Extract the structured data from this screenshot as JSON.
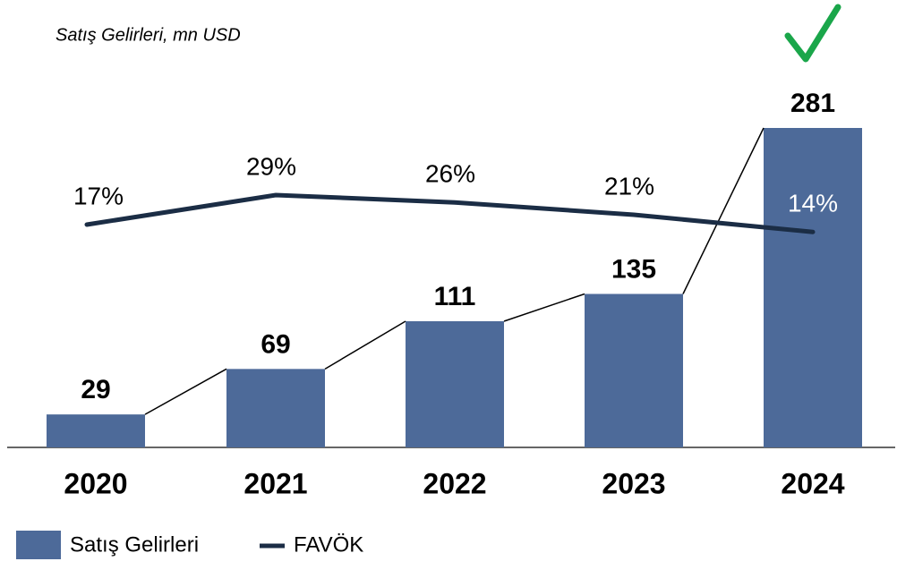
{
  "chart_data": {
    "type": "bar",
    "title": "Satış Gelirleri, mn USD",
    "categories": [
      "2020",
      "2021",
      "2022",
      "2023",
      "2024"
    ],
    "series": [
      {
        "name": "Satış Gelirleri",
        "type": "bar",
        "color": "#4d6a99",
        "values": [
          29,
          69,
          111,
          135,
          281
        ]
      },
      {
        "name": "FAVÖK",
        "type": "line",
        "axis": "y2",
        "color": "#1b2d45",
        "values": [
          17,
          29,
          26,
          21,
          14
        ],
        "value_labels": [
          "17%",
          "29%",
          "26%",
          "21%",
          "14%"
        ]
      }
    ],
    "legend": "bottom-left"
  }
}
